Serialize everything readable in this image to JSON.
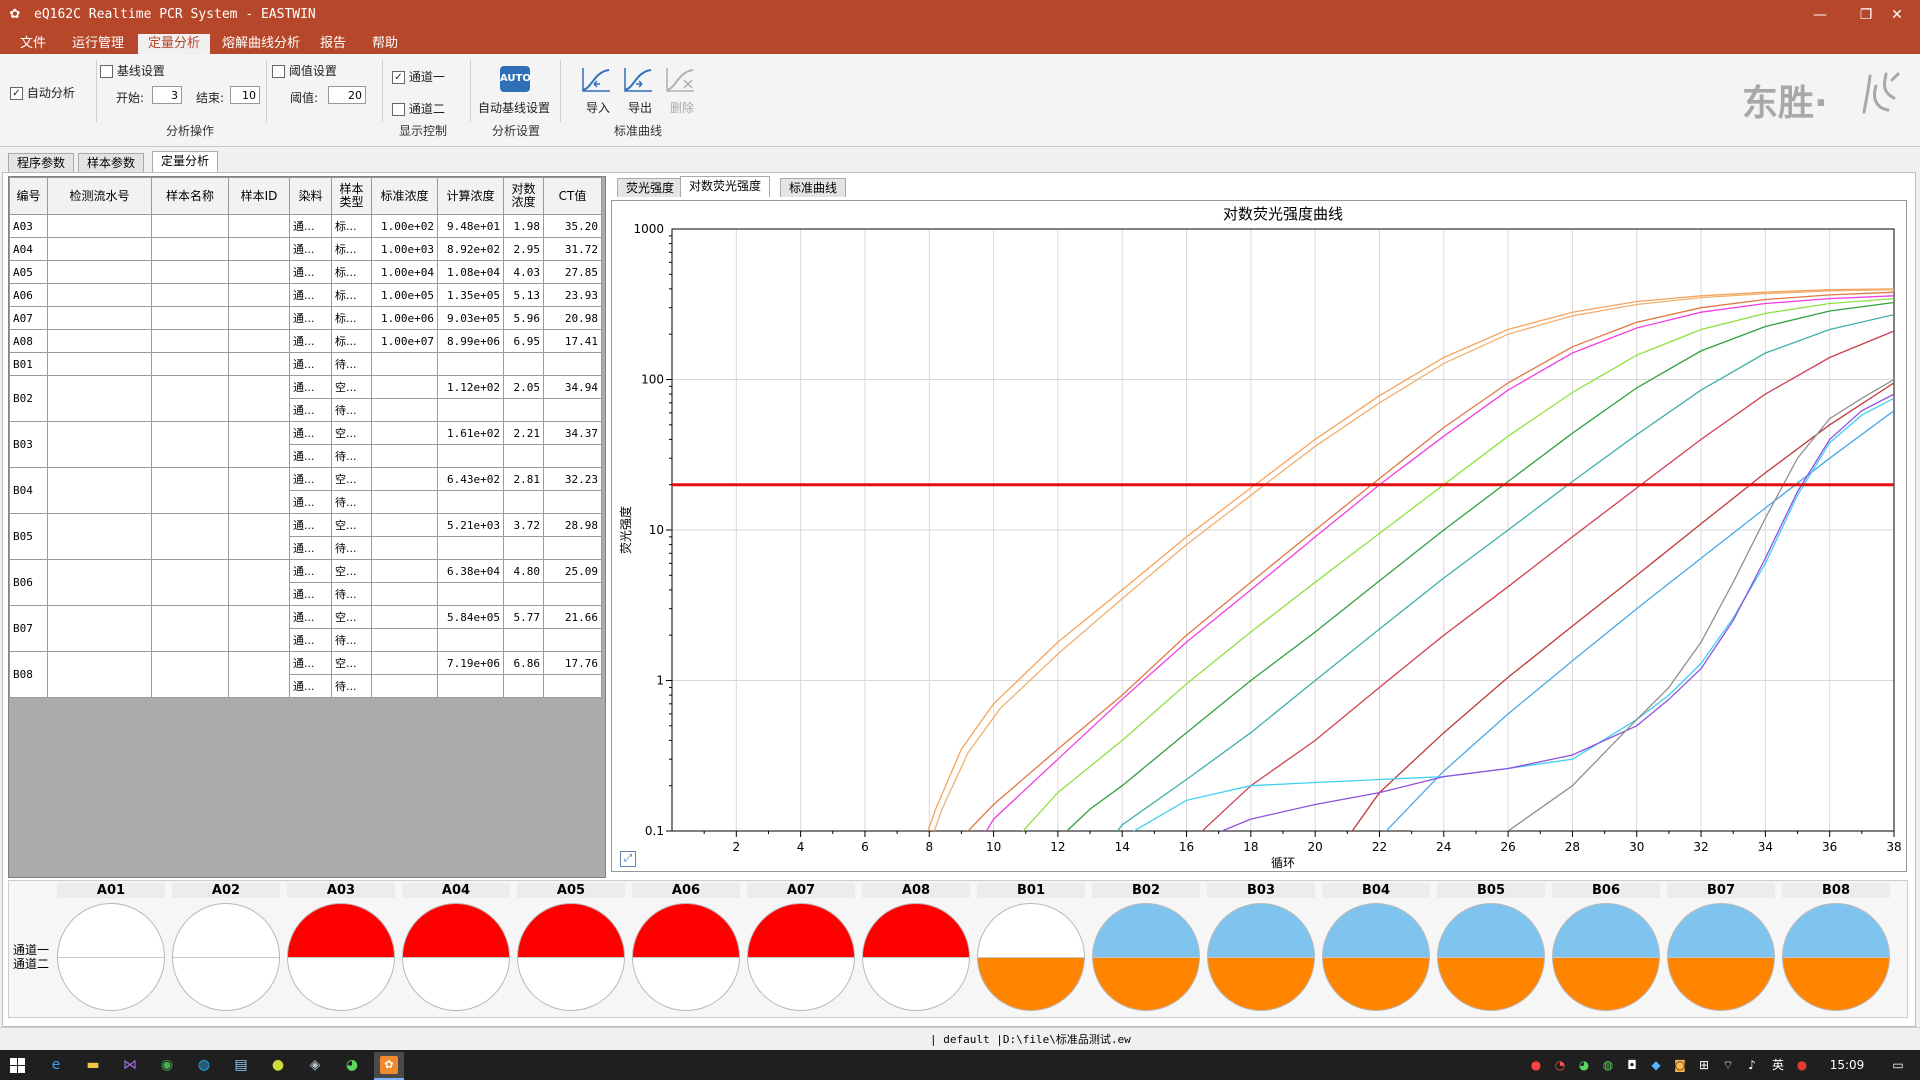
{
  "window": {
    "title": "eQ162C Realtime PCR System - EASTWIN",
    "controls": [
      "—",
      "❐",
      "✕"
    ]
  },
  "menu": [
    "文件",
    "运行管理",
    "定量分析",
    "熔解曲线分析",
    "报告",
    "帮助"
  ],
  "menu_active": 2,
  "ribbon": {
    "auto_analysis": "自动分析",
    "baseline_setting": "基线设置",
    "start_label": "开始:",
    "start_value": "3",
    "end_label": "结束:",
    "end_value": "10",
    "analysis_group": "分析操作",
    "threshold_setting": "阈值设置",
    "threshold_label": "阈值:",
    "threshold_value": "20",
    "channel1": "通道一",
    "channel2": "通道二",
    "display_group": "显示控制",
    "auto_icon_text": "AUTO",
    "auto_baseline": "自动基线设置",
    "settings_group": "分析设置",
    "import": "导入",
    "export": "导出",
    "delete": "删除",
    "standard_group": "标准曲线",
    "logo_text": "东胜·"
  },
  "outer_tabs": [
    "程序参数",
    "样本参数",
    "定量分析"
  ],
  "outer_tab_active": 2,
  "table": {
    "headers": [
      "编号",
      "检测流水号",
      "样本名称",
      "样本ID",
      "染料",
      "样本类型",
      "标准浓度",
      "计算浓度",
      "对数浓度",
      "CT值"
    ],
    "single_rows": [
      {
        "id": "A03",
        "dye": "通...",
        "type": "标...",
        "std": "1.00e+02",
        "calc": "9.48e+01",
        "log": "1.98",
        "ct": "35.20"
      },
      {
        "id": "A04",
        "dye": "通...",
        "type": "标...",
        "std": "1.00e+03",
        "calc": "8.92e+02",
        "log": "2.95",
        "ct": "31.72"
      },
      {
        "id": "A05",
        "dye": "通...",
        "type": "标...",
        "std": "1.00e+04",
        "calc": "1.08e+04",
        "log": "4.03",
        "ct": "27.85"
      },
      {
        "id": "A06",
        "dye": "通...",
        "type": "标...",
        "std": "1.00e+05",
        "calc": "1.35e+05",
        "log": "5.13",
        "ct": "23.93"
      },
      {
        "id": "A07",
        "dye": "通...",
        "type": "标...",
        "std": "1.00e+06",
        "calc": "9.03e+05",
        "log": "5.96",
        "ct": "20.98"
      },
      {
        "id": "A08",
        "dye": "通...",
        "type": "标...",
        "std": "1.00e+07",
        "calc": "8.99e+06",
        "log": "6.95",
        "ct": "17.41"
      },
      {
        "id": "B01",
        "dye": "通...",
        "type": "待...",
        "std": "",
        "calc": "",
        "log": "",
        "ct": ""
      }
    ],
    "double_rows": [
      {
        "id": "B02",
        "dye1": "通...",
        "type1": "空...",
        "calc": "1.12e+02",
        "log": "2.05",
        "ct": "34.94",
        "dye2": "通...",
        "type2": "待..."
      },
      {
        "id": "B03",
        "dye1": "通...",
        "type1": "空...",
        "calc": "1.61e+02",
        "log": "2.21",
        "ct": "34.37",
        "dye2": "通...",
        "type2": "待..."
      },
      {
        "id": "B04",
        "dye1": "通...",
        "type1": "空...",
        "calc": "6.43e+02",
        "log": "2.81",
        "ct": "32.23",
        "dye2": "通...",
        "type2": "待..."
      },
      {
        "id": "B05",
        "dye1": "通...",
        "type1": "空...",
        "calc": "5.21e+03",
        "log": "3.72",
        "ct": "28.98",
        "dye2": "通...",
        "type2": "待..."
      },
      {
        "id": "B06",
        "dye1": "通...",
        "type1": "空...",
        "calc": "6.38e+04",
        "log": "4.80",
        "ct": "25.09",
        "dye2": "通...",
        "type2": "待..."
      },
      {
        "id": "B07",
        "dye1": "通...",
        "type1": "空...",
        "calc": "5.84e+05",
        "log": "5.77",
        "ct": "21.66",
        "dye2": "通...",
        "type2": "待..."
      },
      {
        "id": "B08",
        "dye1": "通...",
        "type1": "空...",
        "calc": "7.19e+06",
        "log": "6.86",
        "ct": "17.76",
        "dye2": "通...",
        "type2": "待..."
      }
    ]
  },
  "chart_tabs": [
    "荧光强度",
    "对数荧光强度",
    "标准曲线"
  ],
  "chart_tab_active": 1,
  "chart_data": {
    "type": "line",
    "title": "对数荧光强度曲线",
    "xlabel": "循环",
    "ylabel": "荧光强度",
    "xlim": [
      0,
      38
    ],
    "ylim": [
      0.1,
      1000
    ],
    "yscale": "log",
    "x_ticks": [
      2,
      4,
      6,
      8,
      10,
      12,
      14,
      16,
      18,
      20,
      22,
      24,
      26,
      28,
      30,
      32,
      34,
      36,
      38
    ],
    "y_ticks": [
      0.1,
      1,
      10,
      100,
      1000
    ],
    "y_tick_labels": [
      "0.1",
      "1",
      "10",
      "100",
      "1000"
    ],
    "grid": true,
    "threshold": 20,
    "threshold_color": "#e01010",
    "series": [
      {
        "color": "#f5a35c",
        "points": [
          [
            7.7,
            0.07
          ],
          [
            8.2,
            0.14
          ],
          [
            9,
            0.35
          ],
          [
            10,
            0.7
          ],
          [
            12,
            1.8
          ],
          [
            14,
            4
          ],
          [
            16,
            9
          ],
          [
            18,
            19
          ],
          [
            20,
            40
          ],
          [
            22,
            78
          ],
          [
            24,
            140
          ],
          [
            26,
            215
          ],
          [
            28,
            280
          ],
          [
            30,
            330
          ],
          [
            32,
            360
          ],
          [
            34,
            380
          ],
          [
            36,
            395
          ],
          [
            38,
            400
          ]
        ]
      },
      {
        "color": "#f0b070",
        "points": [
          [
            7.9,
            0.07
          ],
          [
            8.4,
            0.14
          ],
          [
            9.2,
            0.33
          ],
          [
            10.2,
            0.65
          ],
          [
            12,
            1.5
          ],
          [
            14,
            3.5
          ],
          [
            16,
            8
          ],
          [
            18,
            17
          ],
          [
            20,
            36
          ],
          [
            22,
            70
          ],
          [
            24,
            128
          ],
          [
            26,
            200
          ],
          [
            28,
            265
          ],
          [
            30,
            315
          ],
          [
            32,
            350
          ],
          [
            34,
            372
          ],
          [
            36,
            388
          ],
          [
            38,
            395
          ]
        ]
      },
      {
        "color": "#e07844",
        "points": [
          [
            9,
            0.09
          ],
          [
            10,
            0.15
          ],
          [
            12,
            0.35
          ],
          [
            14,
            0.8
          ],
          [
            16,
            2
          ],
          [
            18,
            4.5
          ],
          [
            20,
            10
          ],
          [
            22,
            22
          ],
          [
            24,
            48
          ],
          [
            26,
            95
          ],
          [
            28,
            165
          ],
          [
            30,
            240
          ],
          [
            32,
            300
          ],
          [
            34,
            340
          ],
          [
            36,
            365
          ],
          [
            38,
            380
          ]
        ]
      },
      {
        "color": "#f040e0",
        "points": [
          [
            9.5,
            0.08
          ],
          [
            10,
            0.12
          ],
          [
            12,
            0.3
          ],
          [
            14,
            0.75
          ],
          [
            16,
            1.8
          ],
          [
            18,
            4
          ],
          [
            20,
            9
          ],
          [
            22,
            20
          ],
          [
            24,
            42
          ],
          [
            26,
            85
          ],
          [
            28,
            150
          ],
          [
            30,
            220
          ],
          [
            32,
            280
          ],
          [
            34,
            320
          ],
          [
            36,
            345
          ],
          [
            38,
            360
          ]
        ]
      },
      {
        "color": "#90e040",
        "points": [
          [
            10.5,
            0.08
          ],
          [
            12,
            0.18
          ],
          [
            14,
            0.4
          ],
          [
            16,
            0.95
          ],
          [
            18,
            2.1
          ],
          [
            20,
            4.5
          ],
          [
            22,
            9.5
          ],
          [
            24,
            20
          ],
          [
            26,
            42
          ],
          [
            28,
            82
          ],
          [
            30,
            145
          ],
          [
            32,
            215
          ],
          [
            34,
            275
          ],
          [
            36,
            320
          ],
          [
            38,
            345
          ]
        ]
      },
      {
        "color": "#30a040",
        "points": [
          [
            11.8,
            0.08
          ],
          [
            13,
            0.14
          ],
          [
            14,
            0.2
          ],
          [
            16,
            0.45
          ],
          [
            18,
            1
          ],
          [
            20,
            2.1
          ],
          [
            22,
            4.6
          ],
          [
            24,
            10
          ],
          [
            26,
            21
          ],
          [
            28,
            44
          ],
          [
            30,
            88
          ],
          [
            32,
            155
          ],
          [
            34,
            225
          ],
          [
            36,
            285
          ],
          [
            38,
            325
          ]
        ]
      },
      {
        "color": "#40b0a8",
        "points": [
          [
            13.5,
            0.08
          ],
          [
            14,
            0.11
          ],
          [
            16,
            0.22
          ],
          [
            18,
            0.45
          ],
          [
            20,
            1
          ],
          [
            22,
            2.2
          ],
          [
            24,
            4.8
          ],
          [
            26,
            10
          ],
          [
            28,
            21
          ],
          [
            30,
            43
          ],
          [
            32,
            85
          ],
          [
            34,
            150
          ],
          [
            36,
            215
          ],
          [
            38,
            270
          ]
        ]
      },
      {
        "color": "#d04050",
        "points": [
          [
            16,
            0.08
          ],
          [
            18,
            0.2
          ],
          [
            20,
            0.4
          ],
          [
            22,
            0.9
          ],
          [
            24,
            2
          ],
          [
            26,
            4.2
          ],
          [
            28,
            9
          ],
          [
            30,
            19
          ],
          [
            32,
            40
          ],
          [
            34,
            80
          ],
          [
            36,
            140
          ],
          [
            38,
            210
          ]
        ]
      },
      {
        "color": "#c03838",
        "points": [
          [
            20.5,
            0.07
          ],
          [
            21,
            0.09
          ],
          [
            22,
            0.18
          ],
          [
            24,
            0.45
          ],
          [
            26,
            1.05
          ],
          [
            28,
            2.3
          ],
          [
            30,
            5
          ],
          [
            32,
            11
          ],
          [
            34,
            24
          ],
          [
            36,
            50
          ],
          [
            38,
            95
          ]
        ]
      },
      {
        "color": "#4aa8e8",
        "points": [
          [
            21.5,
            0.07
          ],
          [
            22,
            0.09
          ],
          [
            24,
            0.25
          ],
          [
            26,
            0.6
          ],
          [
            28,
            1.35
          ],
          [
            30,
            3
          ],
          [
            32,
            6.5
          ],
          [
            34,
            14
          ],
          [
            36,
            30
          ],
          [
            38,
            62
          ]
        ]
      },
      {
        "color": "#40d0f0",
        "points": [
          [
            13.5,
            0.07
          ],
          [
            14,
            0.09
          ],
          [
            15,
            0.12
          ],
          [
            16,
            0.16
          ],
          [
            18,
            0.2
          ],
          [
            20,
            0.21
          ],
          [
            22,
            0.22
          ],
          [
            24,
            0.23
          ],
          [
            26,
            0.26
          ],
          [
            28,
            0.3
          ],
          [
            30,
            0.55
          ],
          [
            31,
            0.8
          ],
          [
            32,
            1.3
          ],
          [
            33,
            2.6
          ],
          [
            34,
            6
          ],
          [
            35,
            17
          ],
          [
            36,
            38
          ],
          [
            37,
            58
          ],
          [
            38,
            75
          ]
        ]
      },
      {
        "color": "#9050e0",
        "points": [
          [
            15.5,
            0.07
          ],
          [
            16,
            0.08
          ],
          [
            18,
            0.12
          ],
          [
            20,
            0.15
          ],
          [
            22,
            0.18
          ],
          [
            24,
            0.23
          ],
          [
            26,
            0.26
          ],
          [
            28,
            0.32
          ],
          [
            30,
            0.5
          ],
          [
            31,
            0.75
          ],
          [
            32,
            1.2
          ],
          [
            33,
            2.5
          ],
          [
            34,
            6.5
          ],
          [
            35,
            18
          ],
          [
            36,
            40
          ],
          [
            37,
            62
          ],
          [
            38,
            80
          ]
        ]
      },
      {
        "color": "#909090",
        "points": [
          [
            22.5,
            0.07
          ],
          [
            23,
            0.1
          ],
          [
            24,
            0.1
          ],
          [
            26,
            0.1
          ],
          [
            28,
            0.2
          ],
          [
            30,
            0.55
          ],
          [
            31,
            0.9
          ],
          [
            32,
            1.8
          ],
          [
            33,
            4.5
          ],
          [
            34,
            12
          ],
          [
            35,
            30
          ],
          [
            36,
            55
          ],
          [
            37,
            75
          ],
          [
            38,
            100
          ]
        ]
      }
    ]
  },
  "wells": {
    "labels": [
      "A01",
      "A02",
      "A03",
      "A04",
      "A05",
      "A06",
      "A07",
      "A08",
      "B01",
      "B02",
      "B03",
      "B04",
      "B05",
      "B06",
      "B07",
      "B08"
    ],
    "channel_label_1": "通道一",
    "channel_label_2": "通道二",
    "top_colors": [
      "#ffffff",
      "#ffffff",
      "#ff0000",
      "#ff0000",
      "#ff0000",
      "#ff0000",
      "#ff0000",
      "#ff0000",
      "#ffffff",
      "#7fc4ee",
      "#7fc4ee",
      "#7fc4ee",
      "#7fc4ee",
      "#7fc4ee",
      "#7fc4ee",
      "#7fc4ee"
    ],
    "bottom_colors": [
      "#ffffff",
      "#ffffff",
      "#ffffff",
      "#ffffff",
      "#ffffff",
      "#ffffff",
      "#ffffff",
      "#ffffff",
      "#ff8400",
      "#ff8400",
      "#ff8400",
      "#ff8400",
      "#ff8400",
      "#ff8400",
      "#ff8400",
      "#ff8400"
    ]
  },
  "status": {
    "profile": "default",
    "path": "D:\\file\\标准品测试.ew"
  },
  "taskbar": {
    "time": "15:09",
    "ime": "英",
    "icons": [
      "windows-start-icon",
      "edge-icon",
      "explorer-icon",
      "visual-studio-icon",
      "chrome-icon",
      "qq-icon",
      "notes-icon",
      "app-icon",
      "app2-icon",
      "wechat-icon",
      "pcr-app-icon"
    ]
  }
}
